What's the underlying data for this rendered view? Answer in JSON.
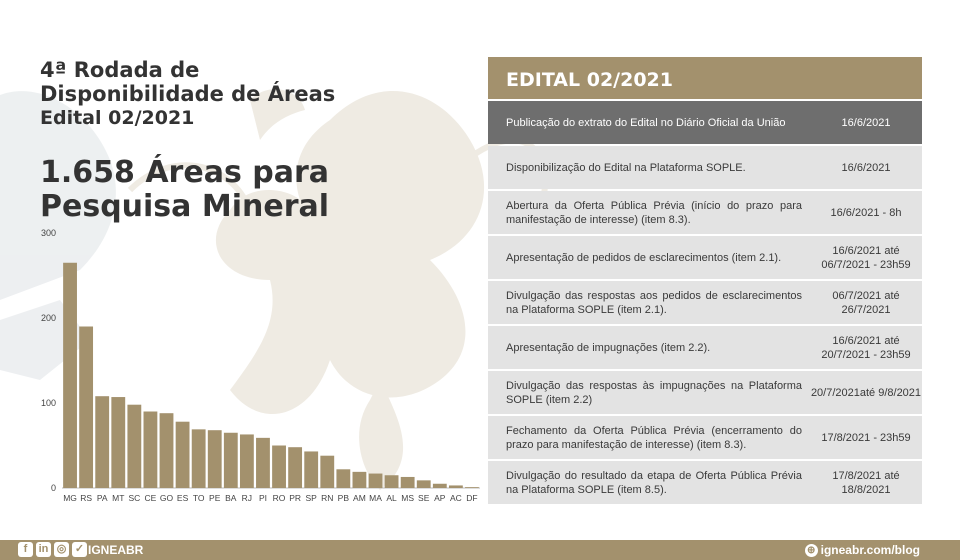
{
  "title": {
    "line1": "4ª Rodada de",
    "line2": "Disponibilidade de Áreas",
    "line3": "Edital 02/2021"
  },
  "headline": "1.658 Áreas para Pesquisa Mineral",
  "chart_data": {
    "type": "bar",
    "categories": [
      "MG",
      "RS",
      "PA",
      "MT",
      "SC",
      "CE",
      "GO",
      "ES",
      "TO",
      "PE",
      "BA",
      "RJ",
      "PI",
      "RO",
      "PR",
      "SP",
      "RN",
      "PB",
      "AM",
      "MA",
      "AL",
      "MS",
      "SE",
      "AP",
      "AC",
      "DF"
    ],
    "values": [
      265,
      190,
      108,
      107,
      98,
      90,
      88,
      78,
      69,
      68,
      65,
      63,
      59,
      50,
      48,
      43,
      38,
      22,
      19,
      17,
      15,
      13,
      9,
      5,
      3,
      1
    ],
    "ylim": [
      0,
      300
    ],
    "yticks": [
      0,
      100,
      200,
      300
    ],
    "bar_color": "#a3916d",
    "grid": false
  },
  "panel": {
    "header": "EDITAL 02/2021",
    "rows": [
      {
        "desc": "Publicação do extrato do Edital no Diário Oficial da União",
        "date": "16/6/2021"
      },
      {
        "desc": "Disponibilização do Edital na Plataforma SOPLE.",
        "date": "16/6/2021"
      },
      {
        "desc": "Abertura da Oferta Pública Prévia (início do prazo para manifestação de interesse) (item 8.3).",
        "date": "16/6/2021 - 8h"
      },
      {
        "desc": "Apresentação de pedidos de esclarecimentos (item 2.1).",
        "date": "16/6/2021 até 06/7/2021 - 23h59"
      },
      {
        "desc": "Divulgação das respostas aos pedidos de esclarecimentos na Plataforma SOPLE (item 2.1).",
        "date": "06/7/2021 até 26/7/2021"
      },
      {
        "desc": "Apresentação de impugnações (item 2.2).",
        "date": "16/6/2021 até 20/7/2021 - 23h59"
      },
      {
        "desc": "Divulgação das respostas às impugnações na Plataforma SOPLE (item 2.2)",
        "date": "20/7/2021até 9/8/2021"
      },
      {
        "desc": "Fechamento da Oferta Pública Prévia (encerramento do prazo para manifestação de interesse) (item 8.3).",
        "date": "17/8/2021 - 23h59"
      },
      {
        "desc": "Divulgação do resultado da etapa de Oferta Pública Prévia na Plataforma SOPLE (item 8.5).",
        "date": "17/8/2021 até 18/8/2021"
      }
    ]
  },
  "footer": {
    "social_icons": [
      "facebook-icon",
      "linkedin-icon",
      "instagram-icon",
      "twitter-icon"
    ],
    "handle": "IGNEABR",
    "blog": "igneabr.com/blog"
  },
  "colors": {
    "accent": "#a3916d",
    "first_row": "#6e6e6e",
    "row": "#e3e3e3",
    "text": "#333333"
  }
}
